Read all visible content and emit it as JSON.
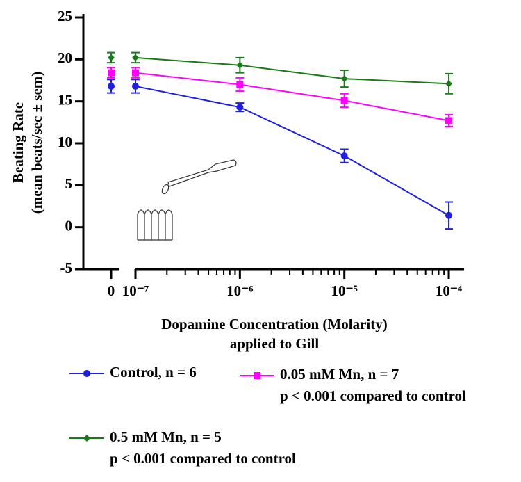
{
  "chart_data": {
    "type": "line",
    "y_label_lines": [
      "Beating Rate",
      "(mean beats/sec ± sem)"
    ],
    "x_label_lines": [
      "Dopamine Concentration (Molarity)",
      "applied to Gill"
    ],
    "x": [
      0,
      1e-07,
      1e-06,
      1e-05,
      0.0001
    ],
    "xscale": "log",
    "xlim": [
      1e-07,
      0.00014
    ],
    "xticks": [
      0,
      {
        "value": 1e-07,
        "label": "10⁻⁷"
      },
      {
        "value": 1e-06,
        "label": "10⁻⁶"
      },
      {
        "value": 1e-05,
        "label": "10⁻⁵"
      },
      {
        "value": 0.0001,
        "label": "10⁻⁴"
      }
    ],
    "xminorticks": [
      2e-07,
      3e-07,
      4e-07,
      5e-07,
      6e-07,
      7e-07,
      8e-07,
      9e-07,
      2e-06,
      3e-06,
      4e-06,
      5e-06,
      6e-06,
      7e-06,
      8e-06,
      9e-06,
      2e-05,
      3e-05,
      4e-05,
      5e-05,
      6e-05,
      7e-05,
      8e-05,
      9e-05
    ],
    "ylim": [
      -5,
      25
    ],
    "yticks": [
      -5,
      0,
      5,
      10,
      15,
      20,
      25
    ],
    "series": [
      {
        "name": "Control, n = 6",
        "color": "#1f1fdd",
        "marker": "circle",
        "values": [
          16.8,
          16.8,
          14.3,
          8.5,
          1.4
        ],
        "errors": [
          0.8,
          0.8,
          0.5,
          0.8,
          1.6
        ]
      },
      {
        "name": "0.05 mM Mn, n = 7",
        "note": "p < 0.001 compared to control",
        "color": "#ff00ff",
        "marker": "square",
        "values": [
          18.4,
          18.4,
          17.0,
          15.1,
          12.7
        ],
        "errors": [
          0.6,
          0.6,
          0.8,
          0.8,
          0.7
        ]
      },
      {
        "name": "0.5 mM Mn, n = 5",
        "note": "p < 0.001 compared to control",
        "color": "#1a7a1a",
        "marker": "diamond",
        "values": [
          20.2,
          20.2,
          19.3,
          17.7,
          17.1
        ],
        "errors": [
          0.6,
          0.6,
          0.9,
          1.0,
          1.2
        ]
      }
    ]
  }
}
